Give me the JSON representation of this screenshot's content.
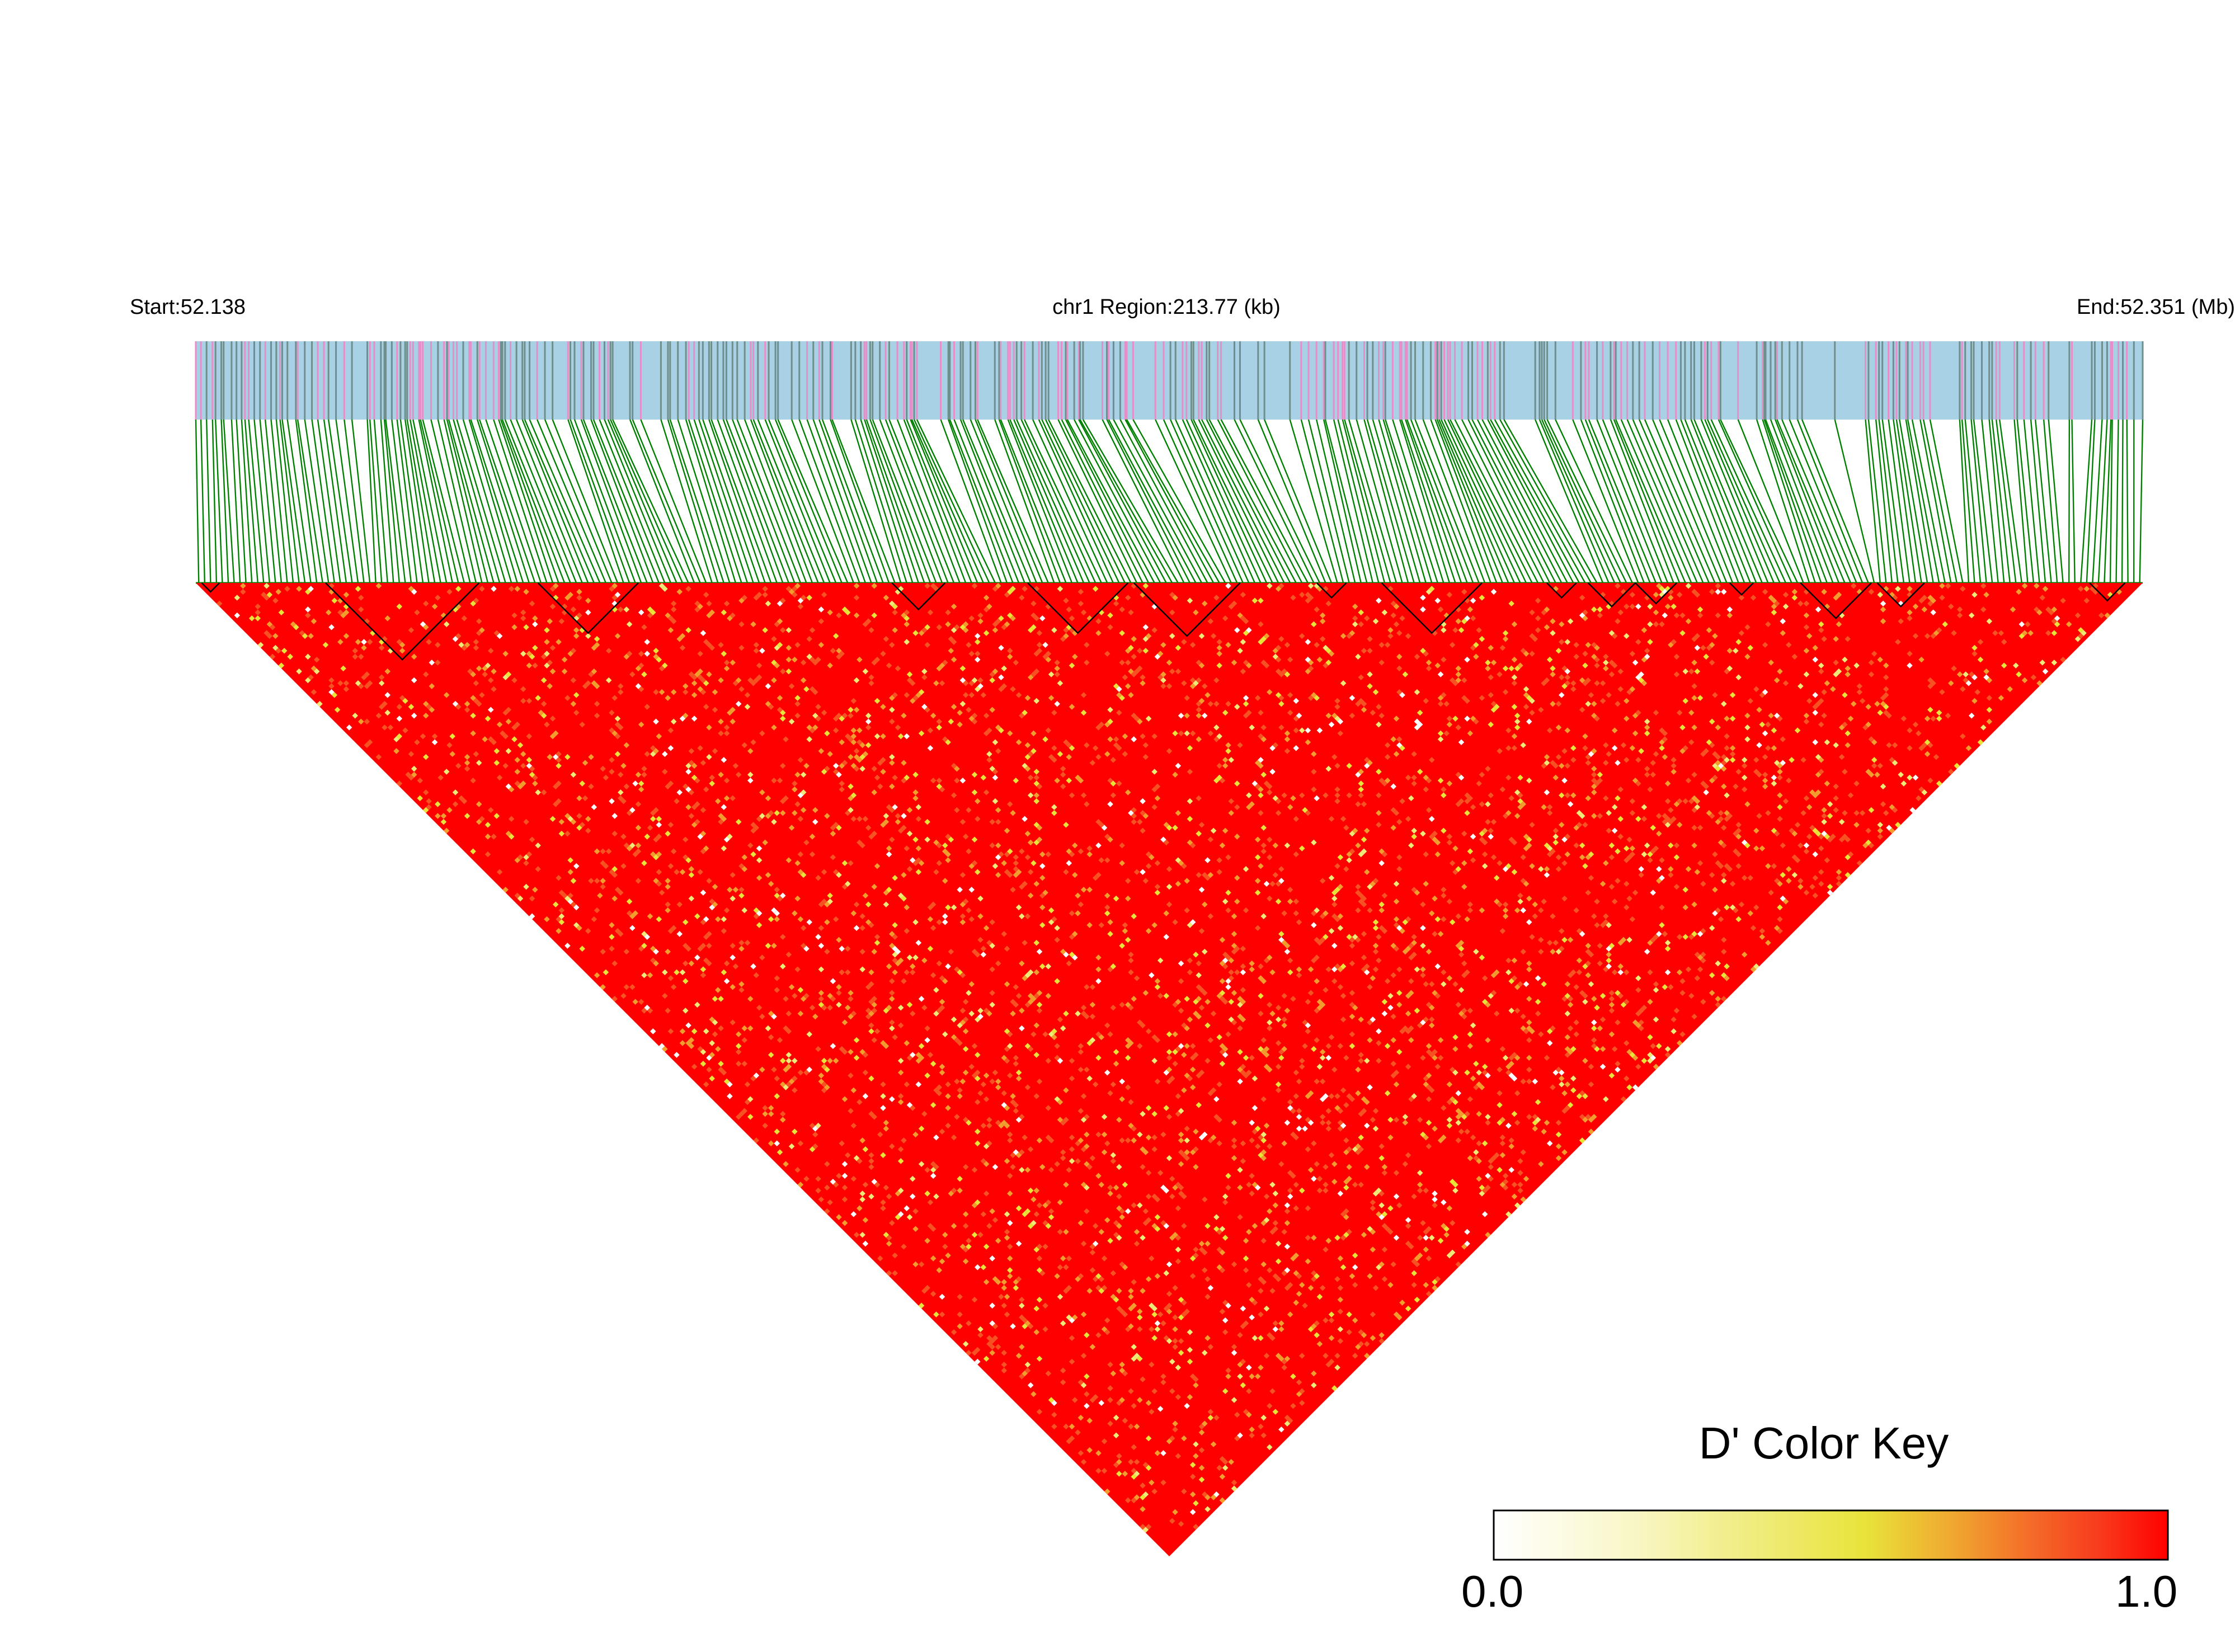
{
  "chart_data": {
    "type": "heatmap",
    "title": "",
    "header": {
      "start_label": "Start:52.138",
      "region_label": "chr1 Region:213.77 (kb)",
      "end_label": "End:52.351 (Mb)"
    },
    "chromosome": "chr1",
    "region_start_mb": 52.138,
    "region_end_mb": 52.351,
    "region_length_kb": 213.77,
    "metric": "D'",
    "color_key": {
      "title": "D' Color Key",
      "min_label": "0.0",
      "max_label": "1.0",
      "min": 0.0,
      "max": 1.0,
      "gradient": [
        "#ffffff",
        "#f9f7c8",
        "#f0ec80",
        "#e8e43a",
        "#f0a830",
        "#f46a28",
        "#f83a1c",
        "#ff0000"
      ]
    },
    "colors": {
      "track_background": "#a9d1e6",
      "variant_tick_gray": "#6f8f8c",
      "variant_tick_pink": "#e58ec8",
      "connector_green": "#008000",
      "block_outline": "#000000",
      "high_ld": "#ff0000"
    },
    "dominant_value": 1.0,
    "cell_value_levels": [
      1.0,
      0.85,
      0.7,
      0.55,
      0.4,
      0.0
    ],
    "haplotype_blocks_mb": [
      [
        52.1387,
        52.1396
      ],
      [
        52.1497,
        52.1642
      ],
      [
        52.1697,
        52.1795
      ],
      [
        52.2079,
        52.2131
      ],
      [
        52.2223,
        52.231
      ],
      [
        52.2322,
        52.2442
      ],
      [
        52.253,
        52.2586
      ],
      [
        52.2633,
        52.2718
      ],
      [
        52.2772,
        52.2793
      ],
      [
        52.2808,
        52.2864
      ],
      [
        52.2877,
        52.2929
      ],
      [
        52.2992,
        52.3012
      ],
      [
        52.3075,
        52.315
      ],
      [
        52.319,
        52.324
      ],
      [
        52.3465,
        52.349
      ]
    ],
    "approx_variant_count": 330
  }
}
